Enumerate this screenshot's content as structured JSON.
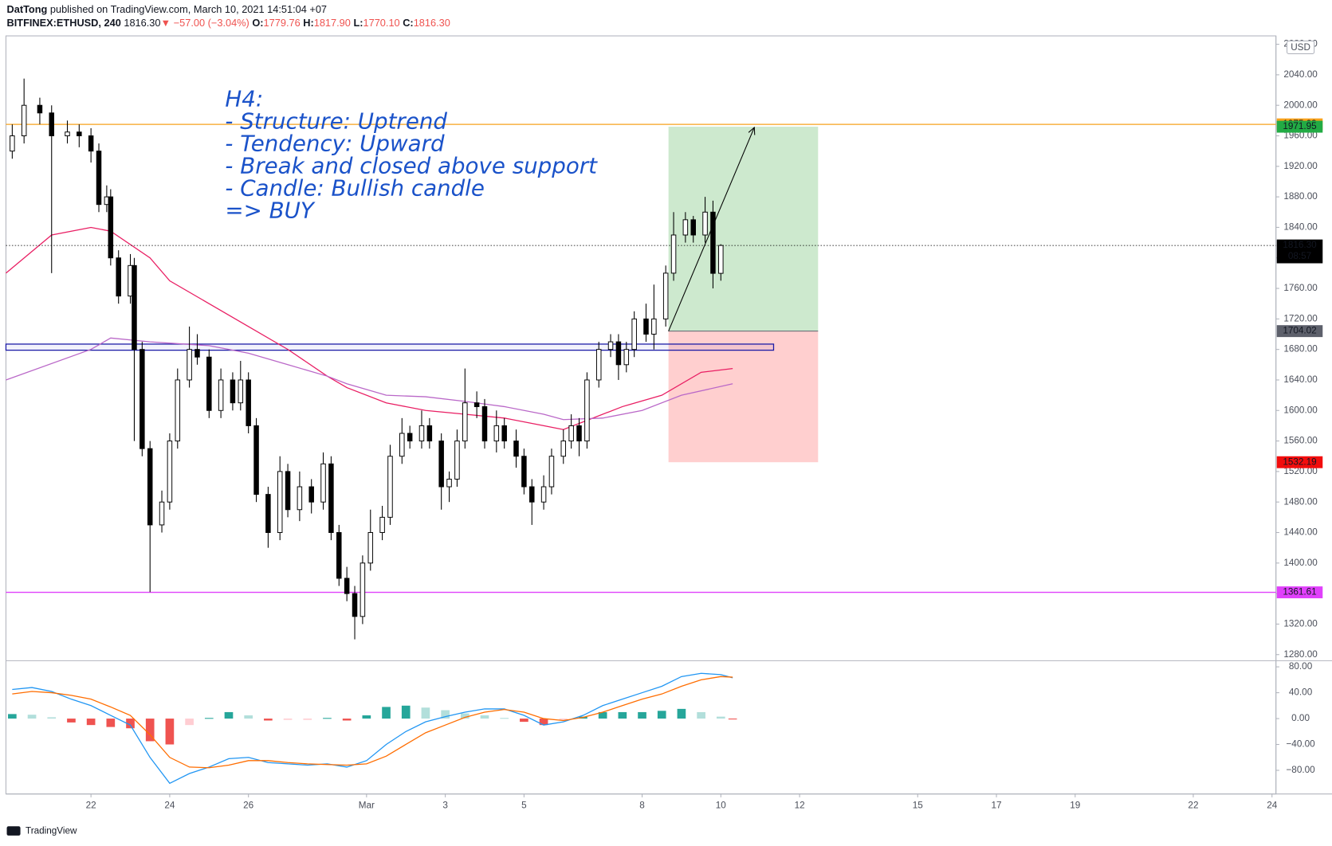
{
  "header": {
    "author": "DatTong",
    "published": "published on TradingView.com, March 10, 2021 14:51:04 +07",
    "symbol": "BITFINEX:ETHUSD, 240",
    "last": "1816.30",
    "arrow": "▼",
    "change": "−57.00 (−3.04%)",
    "ohlc": [
      {
        "key": "O:",
        "value": "1779.76"
      },
      {
        "key": "H:",
        "value": "1817.90"
      },
      {
        "key": "L:",
        "value": "1770.10"
      },
      {
        "key": "C:",
        "value": "1816.30"
      }
    ]
  },
  "footer": "TradingView",
  "chart_data": {
    "type": "candlestick",
    "currency": "USD",
    "annotation": [
      "H4:",
      "- Structure: Uptrend",
      "- Tendency: Upward",
      "- Break and closed above support",
      "- Candle: Bullish candle",
      "=> BUY"
    ],
    "xlim": [
      -2.16,
      30.1
    ],
    "xticks": [
      {
        "value": 0,
        "label": "22"
      },
      {
        "value": 2,
        "label": "24"
      },
      {
        "value": 4,
        "label": "26"
      },
      {
        "value": 7,
        "label": "Mar"
      },
      {
        "value": 9,
        "label": "3"
      },
      {
        "value": 11,
        "label": "5"
      },
      {
        "value": 14,
        "label": "8"
      },
      {
        "value": 16,
        "label": "10"
      },
      {
        "value": 18,
        "label": "12"
      },
      {
        "value": 21,
        "label": "15"
      },
      {
        "value": 23,
        "label": "17"
      },
      {
        "value": 25,
        "label": "19"
      },
      {
        "value": 28,
        "label": "22"
      },
      {
        "value": 30,
        "label": "24"
      }
    ],
    "ylim": [
      1272,
      2091
    ],
    "yticks": [
      {
        "value": 1280,
        "label": "1280.00"
      },
      {
        "value": 1320,
        "label": "1320.00"
      },
      {
        "value": 1360,
        "label": "1360.00"
      },
      {
        "value": 1400,
        "label": "1400.00"
      },
      {
        "value": 1440,
        "label": "1440.00"
      },
      {
        "value": 1480,
        "label": "1480.00"
      },
      {
        "value": 1520,
        "label": "1520.00"
      },
      {
        "value": 1560,
        "label": "1560.00"
      },
      {
        "value": 1600,
        "label": "1600.00"
      },
      {
        "value": 1640,
        "label": "1640.00"
      },
      {
        "value": 1680,
        "label": "1680.00"
      },
      {
        "value": 1720,
        "label": "1720.00"
      },
      {
        "value": 1760,
        "label": "1760.00"
      },
      {
        "value": 1800,
        "label": "1800.00"
      },
      {
        "value": 1840,
        "label": "1840.00"
      },
      {
        "value": 1880,
        "label": "1880.00"
      },
      {
        "value": 1920,
        "label": "1920.00"
      },
      {
        "value": 1960,
        "label": "1960.00"
      },
      {
        "value": 2000,
        "label": "2000.00"
      },
      {
        "value": 2040,
        "label": "2040.00"
      },
      {
        "value": 2080,
        "label": "2080.00"
      }
    ],
    "x": [
      -2,
      -1.7,
      -1.3,
      -1,
      -0.6,
      -0.3,
      0,
      0.2,
      0.4,
      0.5,
      0.7,
      1,
      1.1,
      1.3,
      1.5,
      1.8,
      2,
      2.2,
      2.5,
      2.7,
      3,
      3.3,
      3.6,
      3.8,
      4,
      4.2,
      4.5,
      4.8,
      5,
      5.3,
      5.6,
      5.9,
      6.1,
      6.3,
      6.5,
      6.7,
      6.9,
      7.1,
      7.4,
      7.6,
      7.9,
      8.1,
      8.4,
      8.6,
      8.9,
      9.1,
      9.3,
      9.5,
      9.8,
      10,
      10.3,
      10.5,
      10.8,
      11,
      11.2,
      11.5,
      11.7,
      12,
      12.2,
      12.4,
      12.6,
      12.9,
      13.2,
      13.4,
      13.6,
      13.8,
      14.1,
      14.3,
      14.6,
      14.8,
      15.1,
      15.3,
      15.6,
      15.8,
      16
    ],
    "open": [
      1940,
      1960,
      2000,
      1990,
      1960,
      1965,
      1960,
      1940,
      1870,
      1880,
      1800,
      1750,
      1790,
      1680,
      1550,
      1450,
      1480,
      1560,
      1640,
      1680,
      1670,
      1600,
      1640,
      1610,
      1640,
      1580,
      1490,
      1440,
      1520,
      1470,
      1500,
      1480,
      1530,
      1440,
      1380,
      1360,
      1330,
      1400,
      1440,
      1460,
      1540,
      1570,
      1560,
      1580,
      1560,
      1500,
      1510,
      1560,
      1610,
      1605,
      1560,
      1580,
      1560,
      1540,
      1500,
      1480,
      1500,
      1540,
      1560,
      1580,
      1560,
      1640,
      1680,
      1690,
      1660,
      1680,
      1720,
      1700,
      1720,
      1780,
      1830,
      1850,
      1830,
      1860,
      1779.76
    ],
    "high": [
      1975,
      2035,
      2010,
      2000,
      1980,
      1975,
      1970,
      1950,
      1895,
      1890,
      1810,
      1805,
      1800,
      1690,
      1560,
      1495,
      1570,
      1655,
      1710,
      1700,
      1680,
      1655,
      1650,
      1665,
      1650,
      1590,
      1500,
      1540,
      1530,
      1520,
      1510,
      1545,
      1540,
      1450,
      1395,
      1370,
      1410,
      1470,
      1475,
      1555,
      1590,
      1580,
      1600,
      1590,
      1570,
      1520,
      1575,
      1655,
      1625,
      1615,
      1600,
      1590,
      1575,
      1550,
      1510,
      1515,
      1550,
      1575,
      1595,
      1590,
      1650,
      1690,
      1700,
      1700,
      1690,
      1730,
      1740,
      1765,
      1790,
      1860,
      1860,
      1855,
      1880,
      1875,
      1817.9
    ],
    "low": [
      1930,
      1950,
      1975,
      1780,
      1950,
      1945,
      1925,
      1860,
      1860,
      1790,
      1740,
      1740,
      1560,
      1540,
      1362,
      1440,
      1470,
      1550,
      1630,
      1660,
      1590,
      1590,
      1600,
      1600,
      1570,
      1480,
      1420,
      1430,
      1460,
      1455,
      1465,
      1470,
      1430,
      1370,
      1350,
      1300,
      1320,
      1390,
      1430,
      1450,
      1530,
      1550,
      1550,
      1550,
      1470,
      1480,
      1500,
      1550,
      1590,
      1550,
      1545,
      1550,
      1525,
      1490,
      1450,
      1470,
      1490,
      1530,
      1550,
      1540,
      1550,
      1630,
      1670,
      1640,
      1650,
      1670,
      1690,
      1680,
      1710,
      1770,
      1820,
      1820,
      1820,
      1760,
      1770.1
    ],
    "close": [
      1960,
      2000,
      1990,
      1960,
      1965,
      1960,
      1940,
      1870,
      1880,
      1800,
      1750,
      1790,
      1680,
      1550,
      1450,
      1480,
      1560,
      1640,
      1680,
      1670,
      1600,
      1640,
      1610,
      1640,
      1580,
      1490,
      1440,
      1520,
      1470,
      1500,
      1480,
      1530,
      1440,
      1380,
      1360,
      1330,
      1400,
      1440,
      1460,
      1540,
      1570,
      1560,
      1580,
      1560,
      1500,
      1510,
      1560,
      1610,
      1605,
      1560,
      1580,
      1560,
      1540,
      1500,
      1480,
      1500,
      1540,
      1560,
      1580,
      1560,
      1640,
      1680,
      1690,
      1660,
      1680,
      1720,
      1700,
      1720,
      1780,
      1830,
      1850,
      1830,
      1860,
      1779.76,
      1816.3
    ],
    "moving_averages": [
      {
        "color": "#e91e63",
        "x": [
          -2.16,
          -1,
          0,
          0.5,
          1.5,
          2,
          3,
          4,
          5,
          6,
          6.5,
          7.5,
          8.5,
          9.5,
          10.5,
          11.5,
          12,
          12.5,
          13.5,
          14.5,
          15.5,
          16.3
        ],
        "values": [
          1780,
          1830,
          1840,
          1835,
          1800,
          1770,
          1740,
          1710,
          1680,
          1645,
          1630,
          1610,
          1600,
          1595,
          1590,
          1580,
          1575,
          1585,
          1605,
          1620,
          1650,
          1655
        ]
      },
      {
        "color": "#ba68c8",
        "x": [
          -2.16,
          0,
          0.5,
          1.5,
          3,
          4,
          5,
          6,
          6.5,
          7.5,
          8.5,
          9.5,
          10.5,
          11.5,
          12,
          13,
          14,
          15,
          16.3
        ],
        "values": [
          1640,
          1680,
          1695,
          1690,
          1685,
          1675,
          1660,
          1645,
          1635,
          1620,
          1618,
          1612,
          1605,
          1595,
          1588,
          1590,
          1600,
          1620,
          1635
        ]
      }
    ],
    "price_lines": [
      {
        "value": 1975.03,
        "color": "#f7a21b",
        "style": "solid"
      },
      {
        "value": 1816.3,
        "label": "1816.30",
        "color": "#000000",
        "style": "dotted"
      },
      {
        "value": 1361.61,
        "color": "#e040fb",
        "style": "solid"
      }
    ],
    "countdown": "08:57",
    "zone": {
      "color": "#1a1aa6",
      "x": [
        -2.16,
        17.34
      ],
      "y": [
        1679,
        1687
      ]
    },
    "position": {
      "x": [
        14.67,
        18.47
      ],
      "target": 1971.95,
      "entry": 1704.02,
      "stop": 1532.19,
      "target_color": "#22ab44",
      "entry_color": "#5d606b",
      "stop_color": "#f20d0d"
    },
    "arrow": {
      "x": [
        14.67,
        16.85
      ],
      "y": [
        1704.02,
        1971
      ]
    },
    "macd": {
      "ylim": [
        -116.6,
        89.5
      ],
      "yticks": [
        {
          "value": 80,
          "label": "80.00"
        },
        {
          "value": 40,
          "label": "40.00"
        },
        {
          "value": 0,
          "label": "0.00"
        },
        {
          "value": -40,
          "label": "−40.00"
        },
        {
          "value": -80,
          "label": "−80.00"
        }
      ],
      "x": [
        -2,
        -1.5,
        -1,
        -0.5,
        0,
        0.5,
        1,
        1.5,
        2,
        2.5,
        3,
        3.5,
        4,
        4.5,
        5,
        5.5,
        6,
        6.5,
        7,
        7.5,
        8,
        8.5,
        9,
        9.5,
        10,
        10.5,
        11,
        11.5,
        12,
        12.5,
        13,
        13.5,
        14,
        14.5,
        15,
        15.5,
        16,
        16.3
      ],
      "macd": {
        "color": "#2196f3",
        "values": [
          45,
          48,
          42,
          30,
          20,
          5,
          -10,
          -60,
          -100,
          -85,
          -75,
          -62,
          -60,
          -68,
          -70,
          -72,
          -70,
          -75,
          -65,
          -40,
          -20,
          -5,
          3,
          10,
          15,
          15,
          5,
          -10,
          -5,
          5,
          20,
          30,
          40,
          50,
          65,
          70,
          68,
          63
        ]
      },
      "signal": {
        "color": "#ff6d00",
        "values": [
          38,
          42,
          40,
          36,
          30,
          18,
          5,
          -25,
          -60,
          -75,
          -76,
          -72,
          -65,
          -65,
          -68,
          -70,
          -71,
          -72,
          -70,
          -58,
          -40,
          -22,
          -10,
          2,
          10,
          14,
          10,
          0,
          -3,
          2,
          10,
          20,
          30,
          38,
          50,
          60,
          65,
          64
        ]
      },
      "histogram": [
        7,
        6,
        2,
        -6,
        -10,
        -13,
        -15,
        -35,
        -40,
        -10,
        1,
        10,
        5,
        -3,
        -2,
        -2,
        1,
        -3,
        5,
        18,
        20,
        17,
        13,
        8,
        5,
        1,
        -5,
        -10,
        -2,
        3,
        10,
        10,
        10,
        12,
        15,
        10,
        3,
        -1
      ]
    }
  }
}
